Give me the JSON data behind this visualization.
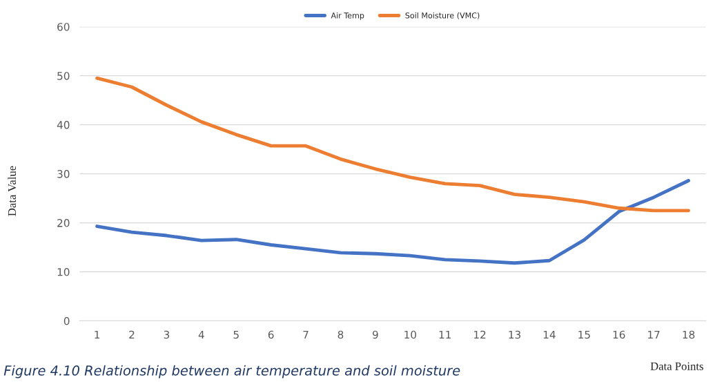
{
  "chart_data": {
    "type": "line",
    "xlabel": "Data Points",
    "ylabel": "Data Value",
    "categories": [
      "1",
      "2",
      "3",
      "4",
      "5",
      "6",
      "7",
      "8",
      "9",
      "10",
      "11",
      "12",
      "13",
      "14",
      "15",
      "16",
      "17",
      "18"
    ],
    "series": [
      {
        "name": "Air Temp",
        "color": "#4472c4",
        "values": [
          19.3,
          18.1,
          17.4,
          16.4,
          16.6,
          15.5,
          14.7,
          13.9,
          13.7,
          13.3,
          12.5,
          12.2,
          11.8,
          12.3,
          16.5,
          22.3,
          25.2,
          28.6
        ]
      },
      {
        "name": "Soil Moisture (VMC)",
        "color": "#ed7d31",
        "values": [
          49.5,
          47.7,
          44,
          40.6,
          38,
          35.7,
          35.7,
          33,
          31,
          29.3,
          28,
          27.6,
          25.8,
          25.2,
          24.3,
          23,
          22.5,
          22.5
        ]
      }
    ],
    "ylim": [
      0,
      60
    ],
    "yticks": [
      0,
      10,
      20,
      30,
      40,
      50,
      60
    ],
    "grid": "y",
    "legend": "top",
    "marker": "none",
    "line_style": "solid",
    "annotations": [
      "Figure 4.10 Relationship between air temperature and soil moisture"
    ]
  }
}
